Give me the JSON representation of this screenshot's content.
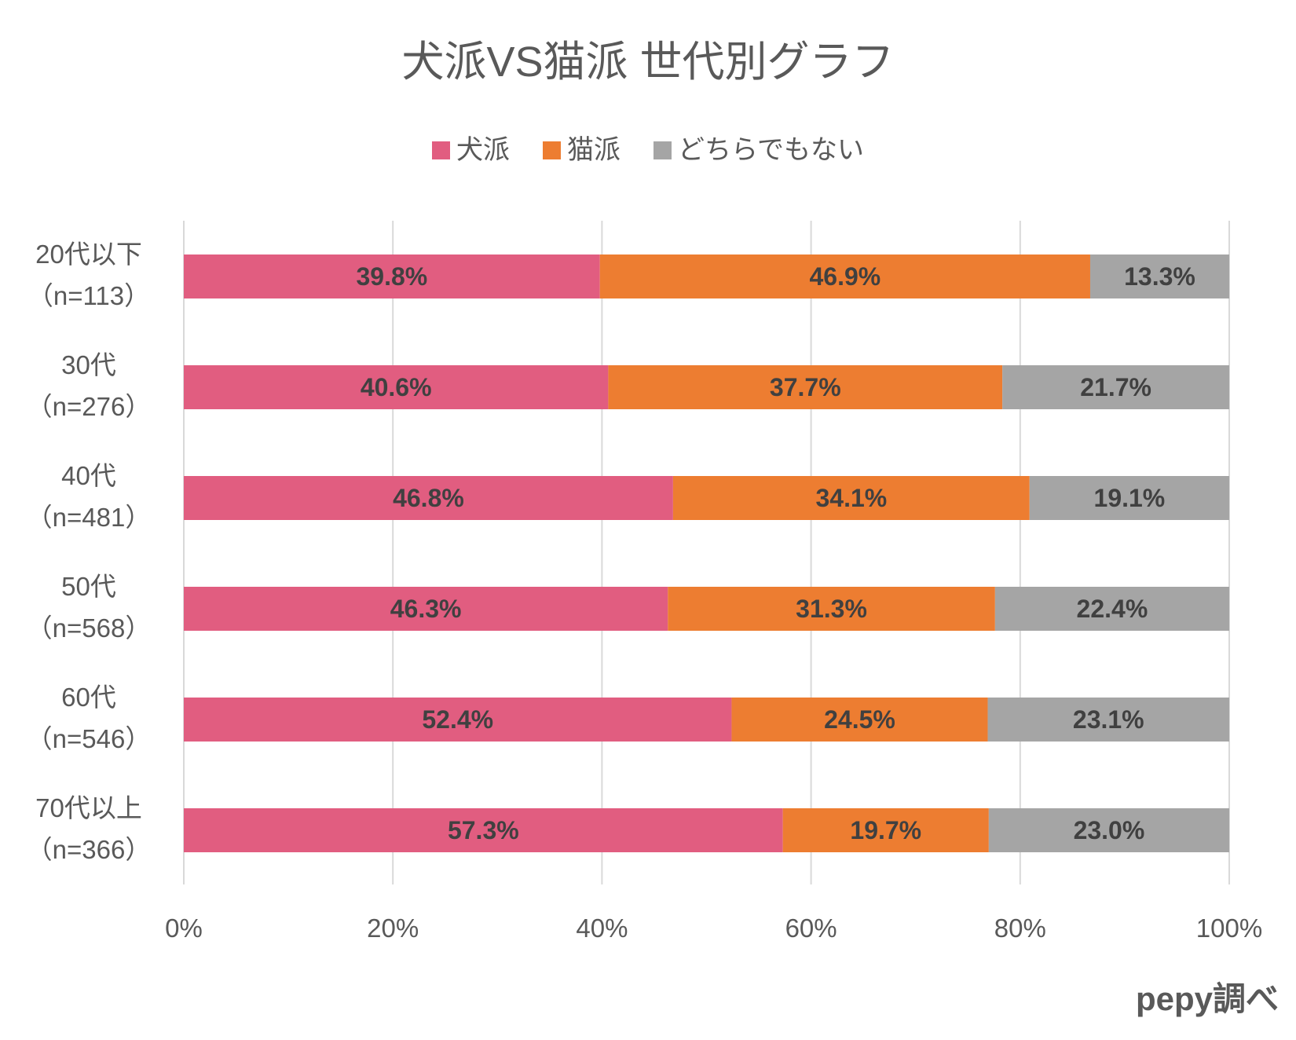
{
  "source": "pepy調べ",
  "chart_data": {
    "type": "bar",
    "orientation": "horizontal",
    "stacking": "percent",
    "title": "犬派VS猫派 世代別グラフ",
    "categories": [
      "20代以下（n=113）",
      "30代（n=276）",
      "40代（n=481）",
      "50代（n=568）",
      "60代（n=546）",
      "70代以上（n=366）"
    ],
    "series": [
      {
        "name": "犬派",
        "color": "#E15D80",
        "values": [
          39.8,
          40.6,
          46.8,
          46.3,
          52.4,
          57.3
        ]
      },
      {
        "name": "猫派",
        "color": "#ED7D31",
        "values": [
          46.9,
          37.7,
          34.1,
          31.3,
          24.5,
          19.7
        ]
      },
      {
        "name": "どちらでもない",
        "color": "#A5A5A5",
        "values": [
          13.3,
          21.7,
          19.1,
          22.4,
          23.1,
          23.0
        ]
      }
    ],
    "xlim": [
      0,
      100
    ],
    "x_ticks": [
      "0%",
      "20%",
      "40%",
      "60%",
      "80%",
      "100%"
    ],
    "grid": "vertical",
    "legend_position": "top",
    "data_labels": true,
    "xlabel": "",
    "ylabel": ""
  }
}
